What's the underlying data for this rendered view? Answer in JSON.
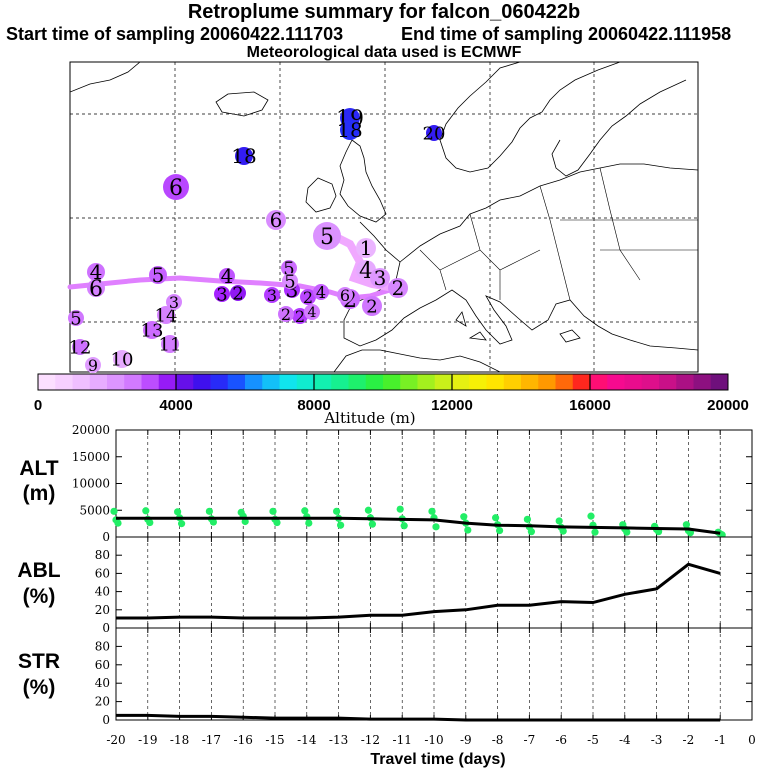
{
  "header": {
    "title": "Retroplume summary for falcon_060422b",
    "start_label": "Start time of sampling 20060422.111703",
    "end_label": "End time of sampling 20060422.111958",
    "met_label": "Meteorological data used is ECMWF"
  },
  "map": {
    "markers": [
      {
        "day": "19",
        "alt": 5200
      },
      {
        "day": "18",
        "alt": 5300
      },
      {
        "day": "20",
        "alt": 5000
      },
      {
        "day": "18",
        "alt": 5000
      },
      {
        "day": "6",
        "alt": 3300
      },
      {
        "day": "6",
        "alt": 2400
      },
      {
        "day": "5",
        "alt": 2300
      },
      {
        "day": "1",
        "alt": 1500
      },
      {
        "day": "4",
        "alt": 1800
      },
      {
        "day": "3",
        "alt": 2200
      },
      {
        "day": "2",
        "alt": 2500
      },
      {
        "day": "4",
        "alt": 2900
      },
      {
        "day": "5",
        "alt": 3100
      },
      {
        "day": "6",
        "alt": 2600
      },
      {
        "day": "5",
        "alt": 3000
      },
      {
        "day": "4",
        "alt": 3200
      },
      {
        "day": "3",
        "alt": 3600
      },
      {
        "day": "2",
        "alt": 3800
      },
      {
        "day": "3",
        "alt": 3400
      },
      {
        "day": "3",
        "alt": 3500
      },
      {
        "day": "2",
        "alt": 3300
      },
      {
        "day": "2",
        "alt": 3000
      },
      {
        "day": "2",
        "alt": 2800
      },
      {
        "day": "2",
        "alt": 3400
      },
      {
        "day": "5",
        "alt": 2800
      },
      {
        "day": "14",
        "alt": 2600
      },
      {
        "day": "13",
        "alt": 3000
      },
      {
        "day": "11",
        "alt": 2700
      },
      {
        "day": "12",
        "alt": 2900
      },
      {
        "day": "10",
        "alt": 1800
      },
      {
        "day": "9",
        "alt": 2100
      },
      {
        "day": "5",
        "alt": 2400
      },
      {
        "day": "3",
        "alt": 2500
      },
      {
        "day": "4",
        "alt": 3100
      },
      {
        "day": "6",
        "alt": 2600
      },
      {
        "day": "4",
        "alt": 2700
      },
      {
        "day": "2",
        "alt": 2900
      }
    ]
  },
  "colorbar": {
    "ticks": [
      "0",
      "4000",
      "8000",
      "12000",
      "16000",
      "20000"
    ],
    "label": "Altitude (m)"
  },
  "chart_data": [
    {
      "type": "scatter",
      "label_line1": "ALT",
      "label_line2": "(m)",
      "ylim": [
        0,
        20000
      ],
      "yticks": [
        "0",
        "5000",
        "10000",
        "15000",
        "20000"
      ],
      "x": [
        -20,
        -19,
        -18,
        -17,
        -16,
        -15,
        -14,
        -13,
        -12,
        -11,
        -10,
        -9,
        -8,
        -7,
        -6,
        -5,
        -4,
        -3,
        -2,
        -1
      ],
      "mean_values": [
        3500,
        3500,
        3500,
        3500,
        3500,
        3500,
        3500,
        3500,
        3400,
        3300,
        3200,
        2600,
        2200,
        2100,
        1900,
        1800,
        1700,
        1600,
        1500,
        700
      ],
      "point_values": [
        [
          4800,
          3200,
          2600
        ],
        [
          4900,
          3300,
          2700
        ],
        [
          4700,
          3600,
          2500
        ],
        [
          4800,
          3400,
          2800
        ],
        [
          4600,
          3900,
          2900
        ],
        [
          4800,
          3300,
          2700
        ],
        [
          4900,
          3800,
          2600
        ],
        [
          4800,
          3500,
          2200
        ],
        [
          5000,
          3600,
          2400
        ],
        [
          5200,
          3400,
          2100
        ],
        [
          4800,
          3600,
          1900
        ],
        [
          3800,
          2600,
          1300
        ],
        [
          3600,
          2300,
          1200
        ],
        [
          3300,
          1900,
          1000
        ],
        [
          3000,
          1800,
          1100
        ],
        [
          3900,
          2200,
          900
        ],
        [
          2300,
          1500,
          900
        ],
        [
          2000,
          1400,
          1000
        ],
        [
          2300,
          1200,
          800
        ],
        [
          900,
          600,
          400
        ]
      ]
    },
    {
      "type": "line",
      "label_line1": "ABL",
      "label_line2": "(%)",
      "ylim": [
        0,
        100
      ],
      "yticks": [
        "0",
        "20",
        "40",
        "60",
        "80"
      ],
      "x": [
        -20,
        -19,
        -18,
        -17,
        -16,
        -15,
        -14,
        -13,
        -12,
        -11,
        -10,
        -9,
        -8,
        -7,
        -6,
        -5,
        -4,
        -3,
        -2,
        -1
      ],
      "values": [
        11,
        11,
        12,
        12,
        11,
        11,
        11,
        12,
        14,
        14,
        18,
        20,
        25,
        25,
        29,
        28,
        37,
        43,
        70,
        60
      ]
    },
    {
      "type": "line",
      "label_line1": "STR",
      "label_line2": "(%)",
      "ylim": [
        0,
        100
      ],
      "yticks": [
        "0",
        "20",
        "40",
        "60",
        "80"
      ],
      "x": [
        -20,
        -19,
        -18,
        -17,
        -16,
        -15,
        -14,
        -13,
        -12,
        -11,
        -10,
        -9,
        -8,
        -7,
        -6,
        -5,
        -4,
        -3,
        -2,
        -1
      ],
      "values": [
        5,
        5,
        4,
        4,
        3,
        2,
        2,
        2,
        1,
        1,
        1,
        0,
        0,
        0,
        0,
        0,
        0,
        0,
        0,
        0
      ]
    }
  ],
  "xaxis": {
    "ticks": [
      "-20",
      "-19",
      "-18",
      "-17",
      "-16",
      "-15",
      "-14",
      "-13",
      "-12",
      "-11",
      "-10",
      "-9",
      "-8",
      "-7",
      "-6",
      "-5",
      "-4",
      "-3",
      "-2",
      "-1",
      "0"
    ],
    "label": "Travel time (days)"
  },
  "colors": {
    "scatter": "#22ee66",
    "line": "#000000",
    "plume": "#e080ff",
    "grid": "#000000"
  }
}
